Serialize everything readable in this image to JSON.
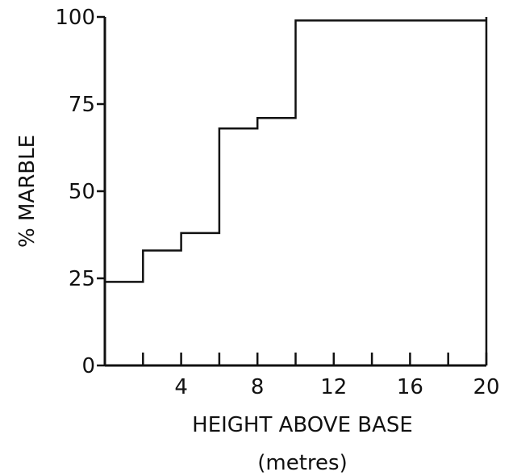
{
  "chart_data": {
    "type": "line",
    "step": true,
    "title": "",
    "xlabel": "HEIGHT ABOVE BASE",
    "xlabel_unit": "(metres)",
    "ylabel": "% MARBLE",
    "xlim": [
      0,
      20
    ],
    "ylim": [
      0,
      100
    ],
    "x_ticks": [
      0,
      2,
      4,
      6,
      8,
      10,
      12,
      14,
      16,
      18,
      20
    ],
    "x_tick_labels": [
      {
        "value": 4,
        "label": "4"
      },
      {
        "value": 8,
        "label": "8"
      },
      {
        "value": 12,
        "label": "12"
      },
      {
        "value": 16,
        "label": "16"
      },
      {
        "value": 20,
        "label": "20"
      }
    ],
    "y_tick_labels": [
      {
        "value": 0,
        "label": "0"
      },
      {
        "value": 25,
        "label": "25"
      },
      {
        "value": 50,
        "label": "50"
      },
      {
        "value": 75,
        "label": "75"
      },
      {
        "value": 100,
        "label": "100"
      }
    ],
    "grid": false,
    "series": [
      {
        "x": [
          0,
          2,
          4,
          6,
          8,
          10,
          20
        ],
        "values": [
          24,
          33,
          38,
          68,
          71,
          99,
          99
        ]
      }
    ]
  }
}
